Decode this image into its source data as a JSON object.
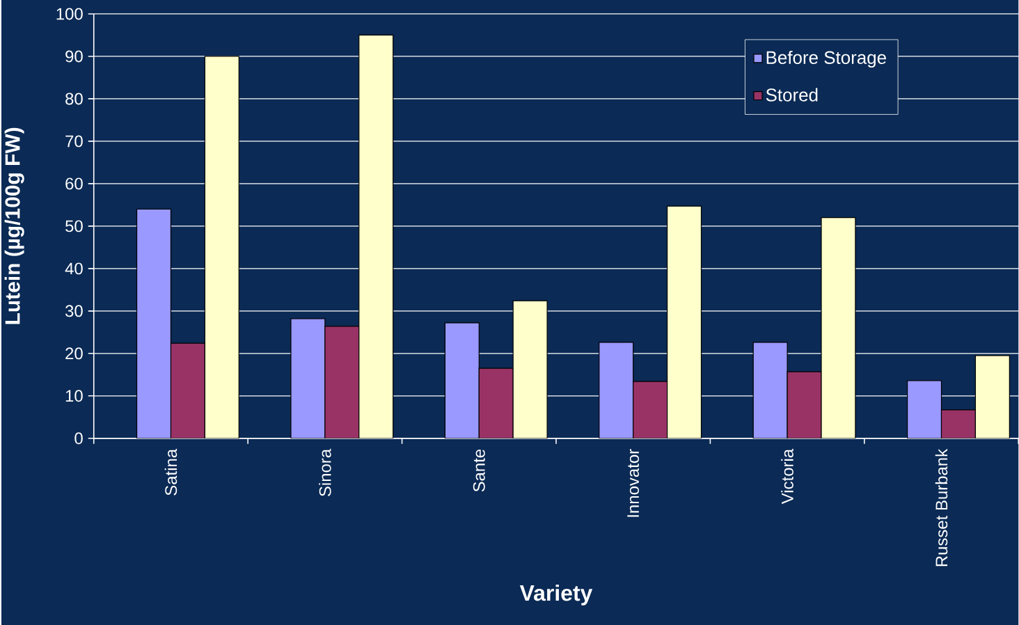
{
  "chart_data": {
    "type": "bar",
    "xlabel": "Variety",
    "ylabel": "Lutein (µg/100g FW)",
    "categories": [
      "Satina",
      "Sinora",
      "Sante",
      "Innovator",
      "Victoria",
      "Russet Burbank"
    ],
    "series": [
      {
        "name": "Before Storage",
        "color": "#9999ff",
        "values": [
          54,
          28.2,
          27.2,
          22.6,
          22.6,
          13.6
        ]
      },
      {
        "name": "Stored",
        "color": "#993366",
        "values": [
          22.4,
          26.4,
          16.5,
          13.4,
          15.7,
          6.7
        ]
      },
      {
        "color": "#ffffcc",
        "values": [
          90,
          95,
          32.4,
          54.7,
          52,
          19.5
        ]
      }
    ],
    "ylim": [
      0,
      100
    ],
    "yticks": [
      0,
      10,
      20,
      30,
      40,
      50,
      60,
      70,
      80,
      90,
      100
    ],
    "grid": "y",
    "legend": "top right"
  }
}
